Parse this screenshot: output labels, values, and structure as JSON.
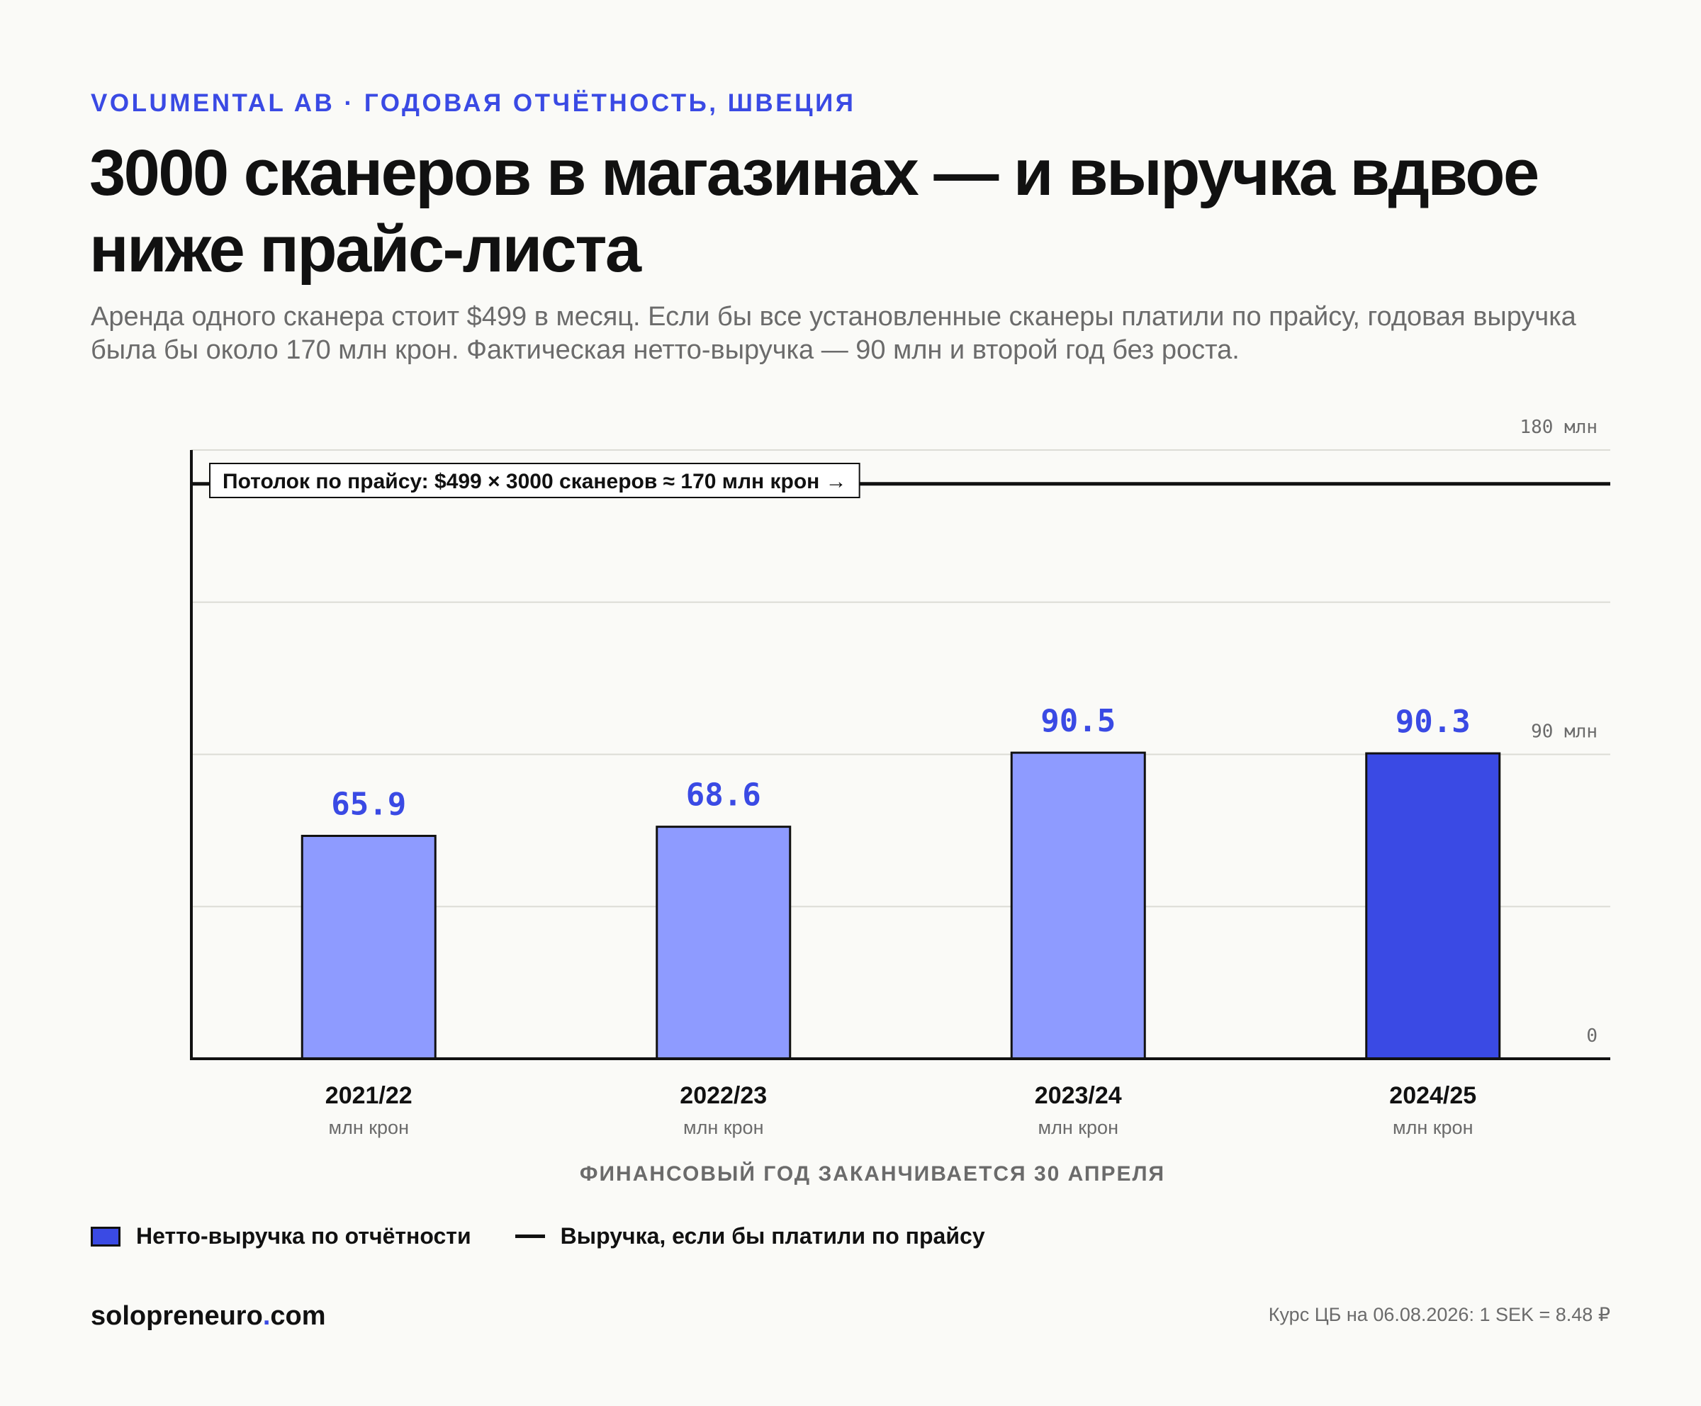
{
  "header": {
    "kicker": "VOLUMENTAL AB · ГОДОВАЯ ОТЧЁТНОСТЬ, ШВЕЦИЯ",
    "title": "3000 сканеров в магазинах — и выручка вдвое ниже прайс-листа",
    "subtitle": "Аренда одного сканера стоит $499 в месяц. Если бы все установленные сканеры платили по прайсу, годовая выручка была бы около 170 млн крон. Фактическая нетто-выручка — 90 млн и второй год без роста."
  },
  "chart_data": {
    "type": "bar",
    "categories": [
      "2021/22",
      "2022/23",
      "2023/24",
      "2024/25"
    ],
    "category_unit": "млн крон",
    "values": [
      65.9,
      68.6,
      90.5,
      90.3
    ],
    "value_labels": [
      "65.9",
      "68.6",
      "90.5",
      "90.3"
    ],
    "highlight_index": 3,
    "ylim": [
      0,
      180
    ],
    "yticks": [
      {
        "value": 0,
        "label": "0"
      },
      {
        "value": 90,
        "label": "90 млн"
      },
      {
        "value": 180,
        "label": "180 млн"
      }
    ],
    "gridlines": [
      45,
      90,
      135,
      180
    ],
    "reference_line": {
      "value": 170,
      "label": "Потолок по прайсу: $499 × 3000 сканеров ≈ 170 млн крон →"
    },
    "xlabel": "ФИНАНСОВЫЙ ГОД ЗАКАНЧИВАЕТСЯ 30 АПРЕЛЯ",
    "grid": true,
    "colors": {
      "bar": "#8e9bff",
      "bar_highlight": "#3a4ae4",
      "value_label": "#3a4ae4",
      "axis": "#111111",
      "grid": "#dcdcd6",
      "reference": "#111111"
    }
  },
  "legend": {
    "items": [
      {
        "label": "Нетто-выручка по отчётности",
        "icon": "bar-swatch"
      },
      {
        "label": "Выручка, если бы платили по прайсу",
        "icon": "line-swatch"
      }
    ]
  },
  "footer": {
    "brand_main": "solopreneuro",
    "brand_dot": ".",
    "brand_tld": "com",
    "rate": "Курс ЦБ на 06.08.2026: 1 SEK = 8.48 ₽"
  }
}
